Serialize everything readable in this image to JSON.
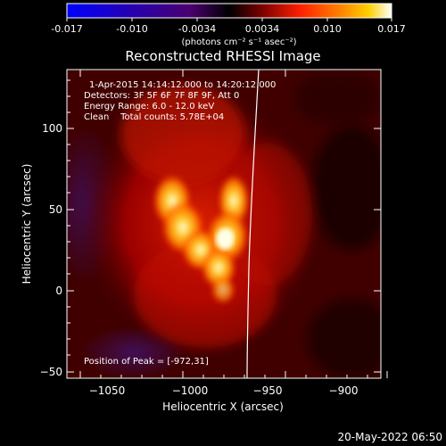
{
  "colorbar": {
    "ticks": [
      "-0.017",
      "-0.010",
      "-0.0034",
      "0.0034",
      "0.010",
      "0.017"
    ],
    "unit_label": "(photons cm⁻² s⁻¹ asec⁻²)",
    "colors": [
      "#0000ff",
      "#2a00a8",
      "#4a0070",
      "#000000",
      "#7a0000",
      "#ff2000",
      "#ff8000",
      "#ffd000",
      "#ffffff"
    ]
  },
  "title": "Reconstructed RHESSI Image",
  "info": {
    "line1": "1-Apr-2015 14:14:12.000 to 14:20:12.000",
    "line2": "Detectors: 3F 5F 6F 7F 8F 9F, Att 0",
    "line3": "Energy Range: 6.0 - 12.0 keV",
    "line4": "Clean    Total counts: 5.78E+04",
    "peak": "Position of Peak = [-972,31]"
  },
  "axes": {
    "xlabel": "Heliocentric X (arcsec)",
    "ylabel": "Heliocentric Y (arcsec)",
    "xticks": [
      "−1050",
      "−1000",
      "−950",
      "−900"
    ],
    "yticks": [
      "100",
      "50",
      "0",
      "−50"
    ]
  },
  "timestamp": "20-May-2022 06:50"
}
